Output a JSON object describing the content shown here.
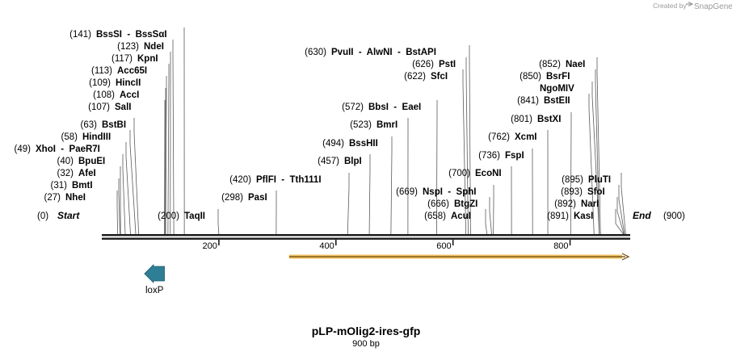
{
  "title": "pLP-mOlig2-ires-gfp",
  "length_label": "900 bp",
  "credit": {
    "prefix": "Created by",
    "brand": "SnapGene"
  },
  "sequence_length": 900,
  "colors": {
    "line": "#1a1a1a",
    "feature_loxp": "#2e7f96",
    "orf_fill": "#f1c060",
    "orf_stroke": "#6b4a10"
  },
  "ticks": [
    "200",
    "400",
    "600",
    "800"
  ],
  "ends": {
    "start": {
      "pos": "(0)",
      "name": "Start"
    },
    "end": {
      "name": "End",
      "pos": "(900)"
    }
  },
  "enzymes": [
    {
      "id": "bsssi",
      "pos": "(141)",
      "name": "BssSI  -  BssSαI",
      "site": 141
    },
    {
      "id": "ndei",
      "pos": "(123)",
      "name": "NdeI",
      "site": 123
    },
    {
      "id": "kpni",
      "pos": "(117)",
      "name": "KpnI",
      "site": 117
    },
    {
      "id": "acc65i",
      "pos": "(113)",
      "name": "Acc65I",
      "site": 113
    },
    {
      "id": "hincii",
      "pos": "(109)",
      "name": "HincII",
      "site": 109
    },
    {
      "id": "acci",
      "pos": "(108)",
      "name": "AccI",
      "site": 108
    },
    {
      "id": "sali",
      "pos": "(107)",
      "name": "SalI",
      "site": 107
    },
    {
      "id": "bstbi",
      "pos": "(63)",
      "name": "BstBI",
      "site": 63
    },
    {
      "id": "hindiii",
      "pos": "(58)",
      "name": "HindIII",
      "site": 58
    },
    {
      "id": "xhoi",
      "pos": "(49)",
      "name": "XhoI  -  PaeR7I",
      "site": 49
    },
    {
      "id": "bpuei",
      "pos": "(40)",
      "name": "BpuEI",
      "site": 40
    },
    {
      "id": "afei",
      "pos": "(32)",
      "name": "AfeI",
      "site": 32
    },
    {
      "id": "bmti",
      "pos": "(31)",
      "name": "BmtI",
      "site": 31
    },
    {
      "id": "nhei",
      "pos": "(27)",
      "name": "NheI",
      "site": 27
    },
    {
      "id": "taqii",
      "pos": "(200)",
      "name": "TaqII",
      "site": 200
    },
    {
      "id": "pasi",
      "pos": "(298)",
      "name": "PasI",
      "site": 298
    },
    {
      "id": "pflfi",
      "pos": "(420)",
      "name": "PflFI  -  Tth111I",
      "site": 420
    },
    {
      "id": "blpi",
      "pos": "(457)",
      "name": "BlpI",
      "site": 457
    },
    {
      "id": "bsshii",
      "pos": "(494)",
      "name": "BssHII",
      "site": 494
    },
    {
      "id": "bmri",
      "pos": "(523)",
      "name": "BmrI",
      "site": 523
    },
    {
      "id": "bbsi",
      "pos": "(572)",
      "name": "BbsI  -  EaeI",
      "site": 572
    },
    {
      "id": "pvuii",
      "pos": "(630)",
      "name": "PvuII  -  AlwNI  -  BstAPI",
      "site": 630
    },
    {
      "id": "psti",
      "pos": "(626)",
      "name": "PstI",
      "site": 626
    },
    {
      "id": "sfci",
      "pos": "(622)",
      "name": "SfcI",
      "site": 622
    },
    {
      "id": "nspi",
      "pos": "(669)",
      "name": "NspI  -  SphI",
      "site": 669
    },
    {
      "id": "btgzi",
      "pos": "(666)",
      "name": "BtgZI",
      "site": 666
    },
    {
      "id": "acui",
      "pos": "(658)",
      "name": "AcuI",
      "site": 658
    },
    {
      "id": "econi",
      "pos": "(700)",
      "name": "EcoNI",
      "site": 700
    },
    {
      "id": "fspi",
      "pos": "(736)",
      "name": "FspI",
      "site": 736
    },
    {
      "id": "xcmi",
      "pos": "(762)",
      "name": "XcmI",
      "site": 762
    },
    {
      "id": "bstxi",
      "pos": "(801)",
      "name": "BstXI",
      "site": 801
    },
    {
      "id": "bsteii",
      "pos": "(841)",
      "name": "BstEII",
      "site": 841
    },
    {
      "id": "ngomiv",
      "pos": "",
      "name": "NgoMIV",
      "site": 850
    },
    {
      "id": "bsrfi",
      "pos": "(850)",
      "name": "BsrFI",
      "site": 850
    },
    {
      "id": "naei",
      "pos": "(852)",
      "name": "NaeI",
      "site": 852
    },
    {
      "id": "pluti",
      "pos": "(895)",
      "name": "PluTI",
      "site": 895
    },
    {
      "id": "sfoi",
      "pos": "(893)",
      "name": "SfoI",
      "site": 893
    },
    {
      "id": "nari",
      "pos": "(892)",
      "name": "NarI",
      "site": 892
    },
    {
      "id": "kasi",
      "pos": "(891)",
      "name": "KasI",
      "site": 891
    }
  ],
  "features": [
    {
      "id": "loxp",
      "name": "loxP",
      "start": 73,
      "end": 107,
      "direction": "reverse"
    },
    {
      "id": "orf",
      "name": "",
      "start": 320,
      "end": 900,
      "direction": "forward"
    }
  ]
}
